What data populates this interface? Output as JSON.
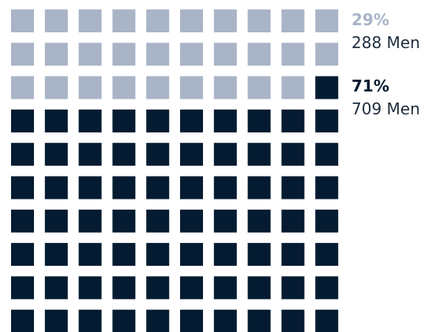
{
  "chart_data": {
    "type": "waffle",
    "grid": {
      "rows": 10,
      "cols": 10,
      "total_units": 100
    },
    "series": [
      {
        "key": "light",
        "percent_label": "29%",
        "count_label": "288 Men",
        "units": 29,
        "color": "#a9b4c7"
      },
      {
        "key": "dark",
        "percent_label": "71%",
        "count_label": "709 Men",
        "units": 71,
        "color": "#041b31"
      }
    ],
    "fill_order": "light units fill from the top-left row by row; dark units fill the remainder"
  }
}
